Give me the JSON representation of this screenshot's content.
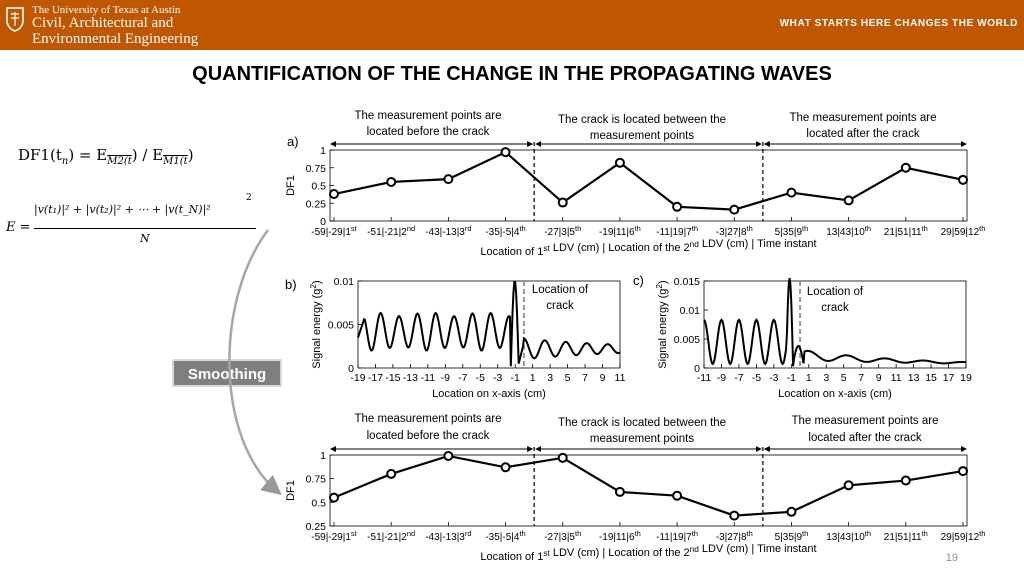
{
  "header": {
    "institution": "The University of Texas at Austin",
    "department_line1": "Civil, Architectural and",
    "department_line2": "Environmental Engineering",
    "tagline": "WHAT STARTS HERE CHANGES THE WORLD"
  },
  "slide": {
    "title": "QUANTIFICATION OF THE CHANGE IN THE PROPAGATING WAVES",
    "page_number": "19"
  },
  "formula": {
    "lhs": "DF1(t",
    "lhs_sub": "n",
    "rhs": ") = E",
    "m2": "M2(t",
    "m1": "M1(t",
    "e_lhs": "E =",
    "numerator": "|v(t₁)|² + |v(t₂)|² + ⋯ + |v(t_N)|²",
    "denominator": "N",
    "exponent": "2"
  },
  "smoothing_label": "Smoothing",
  "panel_labels": {
    "a": "a)",
    "b": "b)",
    "c": "c)"
  },
  "region_labels": {
    "before_1": "The measurement points are",
    "before_2": "located  before the crack",
    "between_1": "The crack is located between the",
    "between_2": "measurement points",
    "after_1": "The measurement points are",
    "after_2": "located  after the crack"
  },
  "crack_label_1": "Location of",
  "crack_label_2": "crack",
  "colors": {
    "banner": "#bf5700",
    "line": "#000000",
    "crack_marker": "#999999"
  },
  "chart_data": [
    {
      "id": "a",
      "type": "line",
      "ylabel": "DF1",
      "xlabel": "Location of 1st LDV (cm) | Location of the 2nd LDV (cm) | Time instant",
      "categories": [
        "-59|-29|1st",
        "-51|-21|2nd",
        "-43|-13|3rd",
        "-35|-5|4th",
        "-27|3|5th",
        "-19|11|6th",
        "-11|19|7th",
        "-3|27|8th",
        "5|35|9th",
        "13|43|10th",
        "21|51|11th",
        "29|59|12th"
      ],
      "values": [
        0.38,
        0.55,
        0.59,
        0.97,
        0.26,
        0.82,
        0.2,
        0.16,
        0.4,
        0.29,
        0.75,
        0.58
      ],
      "ylim": [
        0,
        1
      ],
      "yticks": [
        "0",
        "0.25",
        "0.5",
        "0.75",
        "1"
      ],
      "markers": "circle"
    },
    {
      "id": "b",
      "type": "line",
      "ylabel": "Signal energy (g²)",
      "xlabel": "Location on x-axis (cm)",
      "xticks": [
        "-19",
        "-17",
        "-15",
        "-13",
        "-11",
        "-9",
        "-7",
        "-5",
        "-3",
        "-1",
        "1",
        "3",
        "5",
        "7",
        "9",
        "11"
      ],
      "xlim": [
        -19,
        11
      ],
      "ylim": [
        0,
        0.01
      ],
      "yticks": [
        "0",
        "0.005",
        "0.01"
      ],
      "crack_x": 0
    },
    {
      "id": "c",
      "type": "line",
      "ylabel": "Signal energy (g²)",
      "xlabel": "Location on x-axis (cm)",
      "xticks": [
        "-11",
        "-9",
        "-7",
        "-5",
        "-3",
        "-1",
        "1",
        "3",
        "5",
        "7",
        "9",
        "11",
        "13",
        "15",
        "17",
        "19"
      ],
      "xlim": [
        -11,
        19
      ],
      "ylim": [
        0,
        0.015
      ],
      "yticks": [
        "0",
        "0.005",
        "0.01",
        "0.015"
      ],
      "crack_x": 0
    },
    {
      "id": "d",
      "type": "line",
      "ylabel": "DF1",
      "xlabel": "Location of 1st LDV (cm) | Location of the 2nd LDV (cm) | Time instant",
      "categories": [
        "-59|-29|1st",
        "-51|-21|2nd",
        "-43|-13|3rd",
        "-35|-5|4th",
        "-27|3|5th",
        "-19|11|6th",
        "-11|19|7th",
        "-3|27|8th",
        "5|35|9th",
        "13|43|10th",
        "21|51|11th",
        "29|59|12th"
      ],
      "values": [
        0.55,
        0.8,
        0.99,
        0.87,
        0.97,
        0.61,
        0.57,
        0.36,
        0.4,
        0.68,
        0.73,
        0.83
      ],
      "ylim": [
        0.25,
        1
      ],
      "yticks": [
        "0.25",
        "0.5",
        "0.75",
        "1"
      ],
      "markers": "circle"
    }
  ]
}
